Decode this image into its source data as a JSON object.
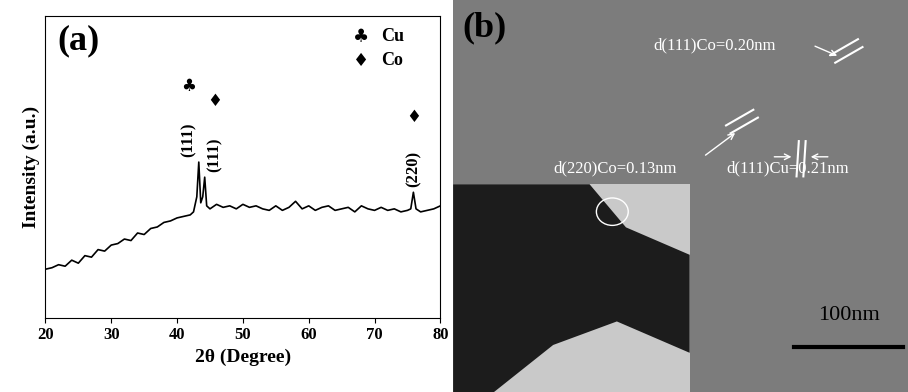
{
  "chart_data": {
    "type": "line",
    "title": "(a)",
    "x_label": "2θ (Degree)",
    "y_label": "Intensity (a.u.)",
    "x": [
      20,
      21,
      22,
      23,
      24,
      25,
      26,
      27,
      28,
      29,
      30,
      31,
      32,
      33,
      34,
      35,
      36,
      37,
      38,
      39,
      40,
      41,
      42,
      42.5,
      43,
      43.3,
      43.6,
      43.9,
      44.2,
      44.5,
      45,
      46,
      47,
      48,
      49,
      50,
      51,
      52,
      53,
      54,
      55,
      56,
      57,
      58,
      59,
      60,
      61,
      62,
      63,
      64,
      65,
      66,
      67,
      68,
      69,
      70,
      71,
      72,
      73,
      74,
      75,
      75.5,
      75.9,
      76.3,
      77,
      78,
      79,
      80
    ],
    "series": [
      {
        "color": "#000000",
        "values": [
          16,
          16.5,
          17.5,
          17,
          19,
          18,
          20.5,
          20,
          22.5,
          22,
          24,
          24.5,
          26,
          25.5,
          28,
          27.5,
          29.5,
          30,
          31.5,
          32,
          33,
          33.5,
          34,
          35,
          40,
          51.5,
          38,
          40,
          46.5,
          37,
          36,
          37.5,
          36.5,
          37,
          36,
          37.5,
          36.5,
          37,
          36,
          35.5,
          37,
          35.5,
          36.5,
          38.5,
          36,
          37,
          35.5,
          36.5,
          37,
          35.5,
          36,
          36.5,
          35,
          37,
          36,
          35.5,
          36.5,
          35.5,
          36,
          35,
          35.5,
          36,
          41.5,
          36,
          35,
          35.5,
          36,
          37
        ]
      }
    ],
    "xlim": [
      20,
      80
    ],
    "xticks": [
      20,
      30,
      40,
      50,
      60,
      70,
      80
    ],
    "ylim": [
      0,
      100
    ],
    "yticks": [],
    "tick_labels": "x",
    "phases": [
      {
        "name": "Cu",
        "symbol": "♣"
      },
      {
        "name": "Co",
        "symbol": "♦"
      }
    ],
    "annotations": [
      {
        "x": 43.3,
        "text": "(111)",
        "phase": "Cu"
      },
      {
        "x": 44.2,
        "text": "(111)",
        "phase": "Co"
      },
      {
        "x": 75.9,
        "text": "(220)",
        "phase": "Co"
      }
    ]
  },
  "image_panel": {
    "label": "(b)",
    "annotations": [
      "d(111)Co=0.20nm",
      "d(220)Co=0.13nm",
      "d(111)Cu=0.21nm"
    ],
    "scale_bar": "100nm"
  }
}
